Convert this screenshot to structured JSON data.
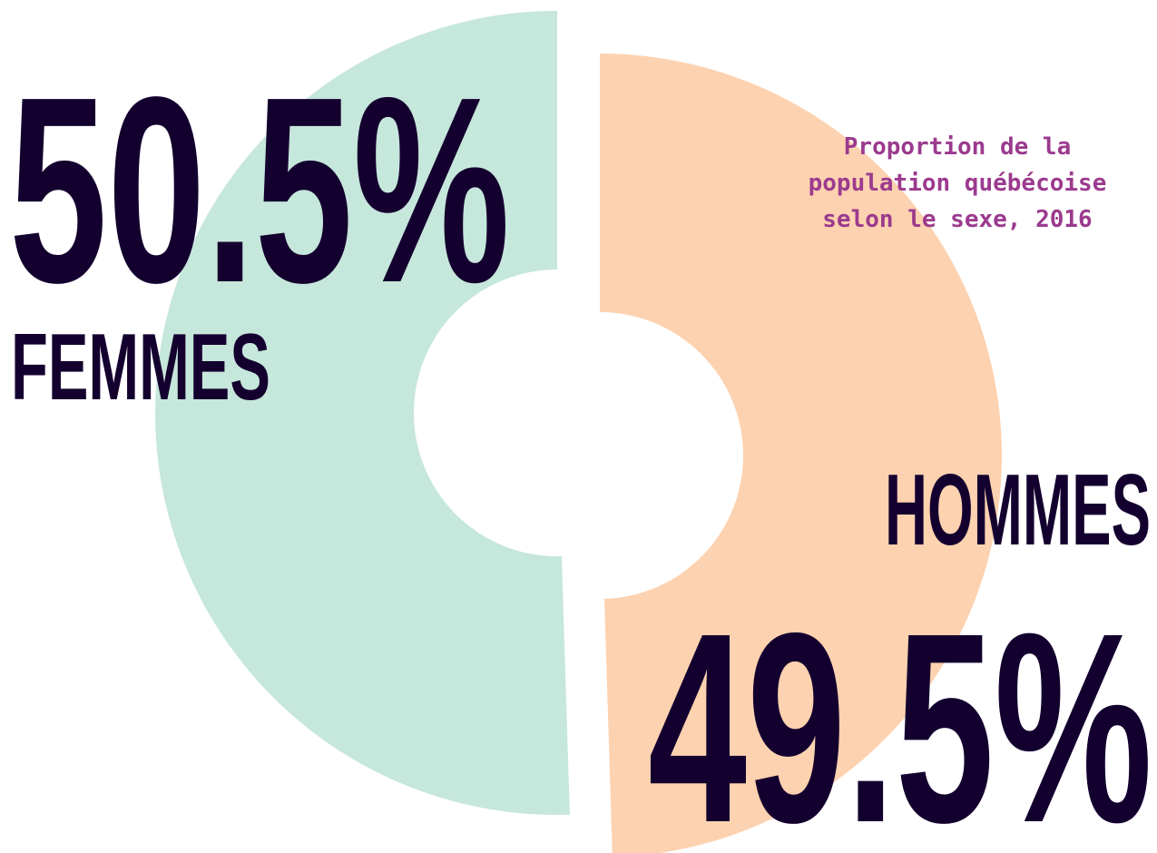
{
  "chart_data": {
    "type": "pie",
    "title": "Proportion de la population québécoise selon le sexe, 2016",
    "categories": [
      "FEMMES",
      "HOMMES"
    ],
    "values": [
      50.5,
      49.5
    ],
    "value_labels": [
      "50.5%",
      "49.5%"
    ],
    "colors": [
      "#c6e7db",
      "#fdd2b0"
    ]
  }
}
